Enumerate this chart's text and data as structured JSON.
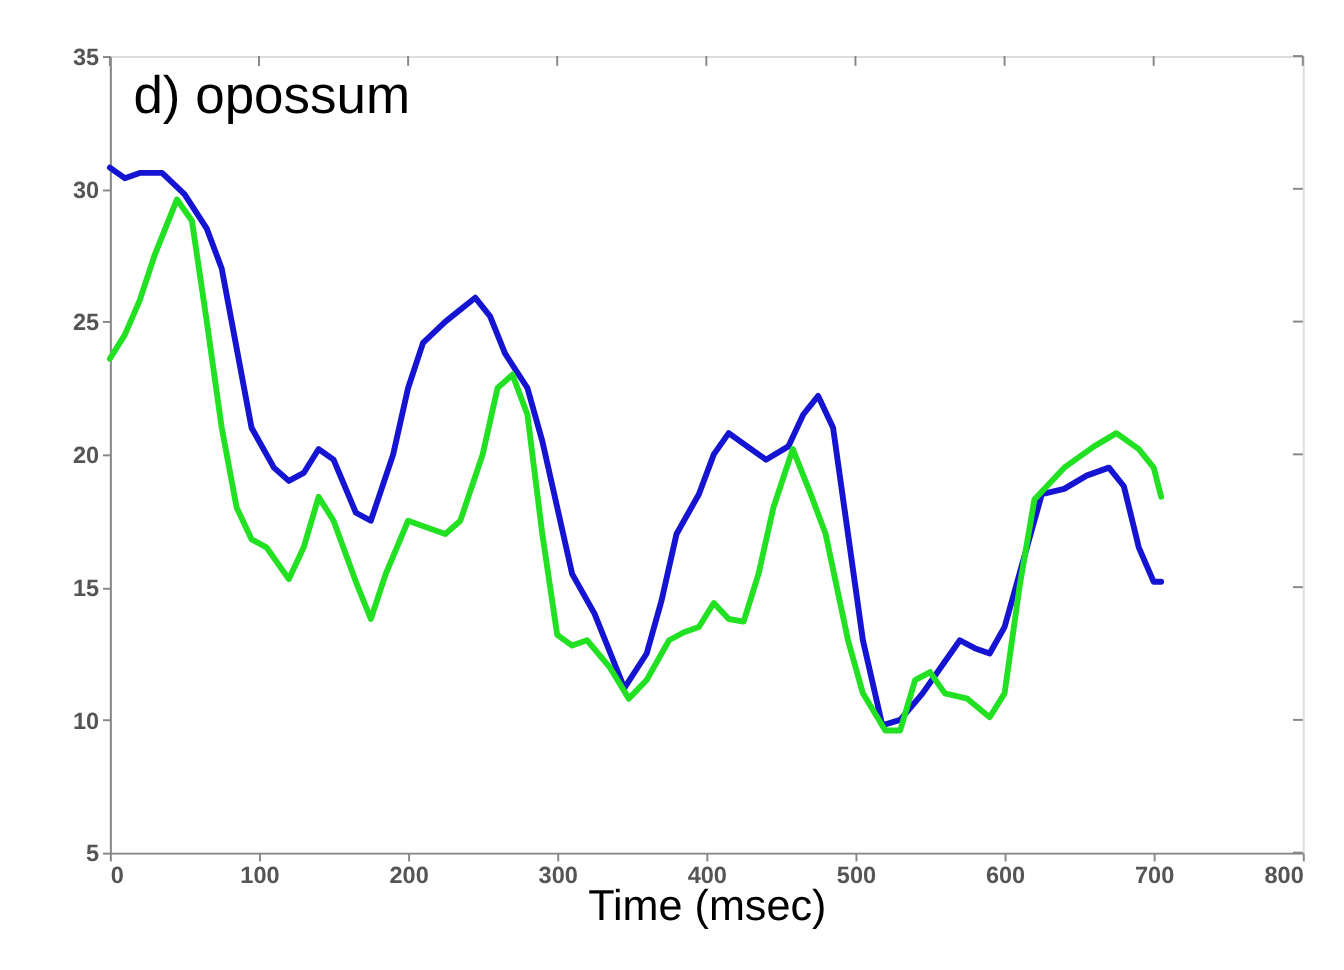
{
  "chart_data": {
    "type": "line",
    "xlabel": "Time (msec)",
    "annotations": [
      "d)  opossum"
    ],
    "xlim": [
      0,
      800
    ],
    "xticks": [
      0,
      100,
      200,
      300,
      400,
      500,
      600,
      700,
      800
    ],
    "ylim": [
      5,
      35
    ],
    "yticks": [
      5,
      10,
      15,
      20,
      25,
      30,
      35
    ],
    "grid": false,
    "marker": "none",
    "line_style": "solid",
    "series": [
      {
        "color": "#1414d2",
        "x": [
          0,
          10,
          20,
          35,
          50,
          65,
          75,
          85,
          95,
          110,
          120,
          130,
          140,
          150,
          165,
          175,
          190,
          200,
          210,
          225,
          245,
          255,
          265,
          280,
          290,
          300,
          310,
          325,
          345,
          360,
          370,
          380,
          395,
          405,
          415,
          430,
          440,
          455,
          465,
          475,
          485,
          495,
          505,
          518,
          530,
          545,
          560,
          570,
          580,
          590,
          600,
          615,
          625,
          640,
          655,
          670,
          680,
          690,
          700,
          705
        ],
        "values": [
          30.8,
          30.4,
          30.6,
          30.6,
          29.8,
          28.5,
          27,
          24,
          21,
          19.5,
          19,
          19.3,
          20.2,
          19.8,
          17.8,
          17.5,
          20,
          22.5,
          24.2,
          25,
          25.9,
          25.2,
          23.8,
          22.5,
          20.5,
          18,
          15.5,
          14,
          11.2,
          12.5,
          14.5,
          17,
          18.5,
          20,
          20.8,
          20.2,
          19.8,
          20.3,
          21.5,
          22.2,
          21,
          17,
          13,
          9.8,
          10,
          11,
          12.2,
          13,
          12.7,
          12.5,
          13.5,
          16.5,
          18.5,
          18.7,
          19.2,
          19.5,
          18.8,
          16.5,
          15.2,
          15.2
        ]
      },
      {
        "color": "#22e022",
        "x": [
          0,
          10,
          20,
          30,
          45,
          55,
          65,
          75,
          85,
          95,
          105,
          120,
          130,
          140,
          150,
          165,
          175,
          185,
          200,
          215,
          225,
          235,
          250,
          260,
          270,
          280,
          290,
          300,
          310,
          320,
          335,
          348,
          360,
          375,
          385,
          395,
          405,
          415,
          425,
          435,
          445,
          458,
          470,
          480,
          495,
          505,
          520,
          530,
          540,
          550,
          560,
          575,
          590,
          600,
          610,
          620,
          640,
          660,
          675,
          690,
          700,
          705
        ],
        "values": [
          23.6,
          24.5,
          25.8,
          27.5,
          29.6,
          28.8,
          25,
          21,
          18,
          16.8,
          16.5,
          15.3,
          16.5,
          18.4,
          17.5,
          15.2,
          13.8,
          15.5,
          17.5,
          17.2,
          17,
          17.5,
          20,
          22.5,
          23,
          21.5,
          17,
          13.2,
          12.8,
          13,
          12,
          10.8,
          11.5,
          13,
          13.3,
          13.5,
          14.4,
          13.8,
          13.7,
          15.5,
          18,
          20.2,
          18.5,
          17,
          13,
          11,
          9.6,
          9.6,
          11.5,
          11.8,
          11,
          10.8,
          10.1,
          11,
          15,
          18.3,
          19.5,
          20.3,
          20.8,
          20.2,
          19.5,
          18.4
        ]
      }
    ]
  }
}
